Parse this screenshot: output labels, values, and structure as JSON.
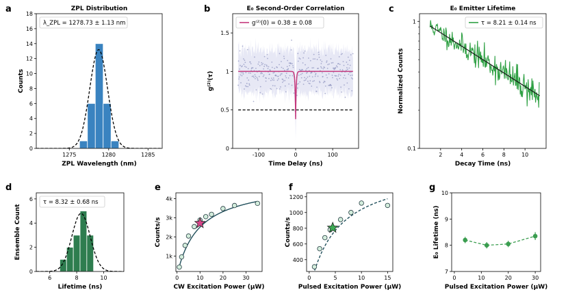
{
  "figure": {
    "panel_letters": [
      "a",
      "b",
      "c",
      "d",
      "e",
      "f",
      "g"
    ]
  },
  "colors": {
    "hist_blue": "#3a83c0",
    "hist_green": "#2e7d4f",
    "magenta": "#c4387c",
    "green_line": "#2ea043",
    "dark_teal": "#1f4e5a",
    "marker_fill": "#d4eedd",
    "star_magenta": "#d6468a",
    "star_green": "#3daa55",
    "lifetime_green": "#3a9d4f",
    "raw_points": "#8c91bd"
  },
  "chart_data": [
    {
      "id": "a",
      "type": "bar",
      "title": "ZPL Distribution",
      "xlabel": "ZPL Wavelength (nm)",
      "ylabel": "Counts",
      "xlim": [
        1270.8,
        1286.8
      ],
      "ylim": [
        0,
        18
      ],
      "xticks": [
        1275,
        1280,
        1285
      ],
      "yticks": [
        0,
        2,
        4,
        6,
        8,
        10,
        12,
        14,
        16,
        18
      ],
      "bin_width": 1.0,
      "bars": [
        {
          "x": 1276.8,
          "value": 1
        },
        {
          "x": 1277.8,
          "value": 6
        },
        {
          "x": 1278.8,
          "value": 14
        },
        {
          "x": 1279.8,
          "value": 6
        },
        {
          "x": 1280.8,
          "value": 1
        }
      ],
      "fit": {
        "type": "gaussian",
        "mu": 1278.73,
        "sigma": 1.13,
        "amplitude": 13.2
      },
      "legend": {
        "text": "λ_ZPL = 1278.73 ± 1.13 nm",
        "loc": "upper left"
      }
    },
    {
      "id": "b",
      "type": "scatter",
      "title": "E₀ Second-Order Correlation",
      "xlabel": "Time Delay (ns)",
      "ylabel": "g⁽²⁾(τ)",
      "xlim": [
        -170,
        170
      ],
      "ylim": [
        0,
        1.75
      ],
      "xticks": [
        -100,
        0,
        100
      ],
      "yticks": [
        0.0,
        0.5,
        1.0,
        1.5
      ],
      "baseline": 1.0,
      "noise": 0.13,
      "fit": {
        "g2_0": 0.38,
        "g2_0_err": 0.08,
        "tau_dip_ns": 1.5
      },
      "reference_line": 0.5,
      "legend": {
        "text": "g⁽²⁾(0) = 0.38 ± 0.08",
        "loc": "upper left"
      }
    },
    {
      "id": "c",
      "type": "line",
      "title": "E₀ Emitter Lifetime",
      "xlabel": "Decay Time (ns)",
      "ylabel": "Normalized Counts",
      "xlim": [
        0,
        12
      ],
      "ylim": [
        0.1,
        1.15
      ],
      "yscale": "log",
      "xticks": [
        2,
        4,
        6,
        8,
        10
      ],
      "yticks": [
        0.1,
        1.0
      ],
      "x_start": 1,
      "x_end": 11.4,
      "tau_ns": 8.21,
      "tau_err": 0.14,
      "norm_at_start": 0.92,
      "legend": {
        "text": "τ = 8.21 ± 0.14 ns",
        "loc": "upper right"
      }
    },
    {
      "id": "d",
      "type": "bar",
      "title": "",
      "xlabel": "Lifetime (ns)",
      "ylabel": "Ensemble Count",
      "xlim": [
        5,
        11.5
      ],
      "ylim": [
        0,
        6.5
      ],
      "xticks": [
        6,
        8,
        10
      ],
      "yticks": [
        0,
        2,
        4,
        6
      ],
      "bin_width": 0.5,
      "bars": [
        {
          "x": 7.0,
          "value": 1
        },
        {
          "x": 7.5,
          "value": 2
        },
        {
          "x": 8.0,
          "value": 3
        },
        {
          "x": 8.5,
          "value": 5
        },
        {
          "x": 9.0,
          "value": 3
        }
      ],
      "fit": {
        "type": "gaussian",
        "mu": 8.32,
        "sigma": 0.68,
        "amplitude": 4.8
      },
      "legend": {
        "text": "τ = 8.32 ± 0.68 ns",
        "loc": "upper left"
      }
    },
    {
      "id": "e",
      "type": "scatter",
      "title": "",
      "xlabel": "CW Excitation Power (μW)",
      "ylabel": "Counts/s",
      "xlim": [
        -0.5,
        37
      ],
      "ylim": [
        200,
        4300
      ],
      "xticks": [
        0,
        10,
        20,
        30
      ],
      "yticks": [
        1000,
        2000,
        3000,
        4000
      ],
      "ytick_labels": [
        "1k",
        "2k",
        "3k",
        "4k"
      ],
      "x": [
        1,
        2,
        3.5,
        5,
        7.5,
        10,
        12.5,
        15,
        20,
        25,
        35
      ],
      "y": [
        430,
        960,
        1560,
        2050,
        2540,
        2880,
        3060,
        3180,
        3480,
        3640,
        3750
      ],
      "fit": {
        "type": "saturation",
        "I_sat": 4900,
        "P_sat": 9.5
      },
      "highlight": {
        "x": 10,
        "y": 2720
      }
    },
    {
      "id": "f",
      "type": "scatter",
      "title": "",
      "xlabel": "Pulsed Excitation Power (μW)",
      "ylabel": "Counts/s",
      "xlim": [
        -0.5,
        16
      ],
      "ylim": [
        250,
        1250
      ],
      "xticks": [
        0,
        5,
        10,
        15
      ],
      "yticks": [
        400,
        600,
        800,
        1000,
        1200
      ],
      "x": [
        1,
        2,
        3,
        4,
        4.5,
        6,
        8,
        10,
        15
      ],
      "y": [
        310,
        540,
        680,
        780,
        810,
        910,
        1000,
        1120,
        1090
      ],
      "fit": {
        "type": "saturation",
        "I_sat": 1590,
        "P_sat": 5.3
      },
      "highlight": {
        "x": 4.5,
        "y": 805
      }
    },
    {
      "id": "g",
      "type": "line",
      "title": "",
      "xlabel": "Pulsed Excitation Power (μW)",
      "ylabel": "E₀ Lifetime (ns)",
      "xlim": [
        -1,
        32
      ],
      "ylim": [
        7,
        10
      ],
      "xticks": [
        0,
        10,
        20,
        30
      ],
      "yticks": [
        7,
        8,
        9,
        10
      ],
      "x": [
        4,
        12,
        20,
        30
      ],
      "y": [
        8.2,
        8.0,
        8.05,
        8.35
      ],
      "yerr": [
        0.12,
        0.12,
        0.12,
        0.15
      ]
    }
  ]
}
